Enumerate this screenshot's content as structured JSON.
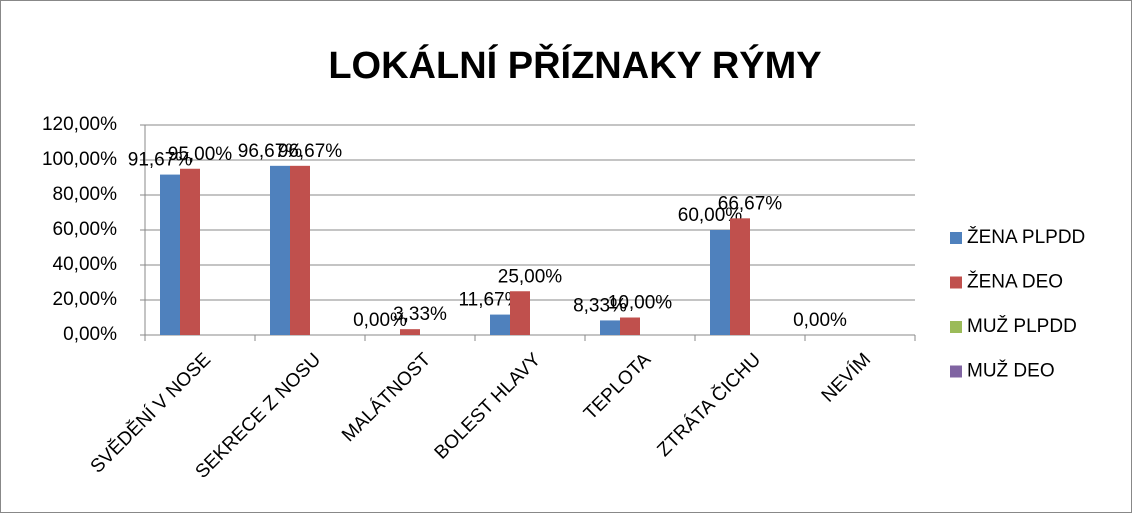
{
  "chart_data": {
    "type": "bar",
    "title": "LOKÁLNÍ PŘÍZNAKY RÝMY",
    "categories": [
      "SVĚDĚNÍ V NOSE",
      "SEKRECE Z NOSU",
      "MALÁTNOST",
      "BOLEST HLAVY",
      "TEPLOTA",
      "ZTRÁTA ČICHU",
      "NEVÍM"
    ],
    "series": [
      {
        "name": "ŽENA PLPDD",
        "color": "#4f81bd",
        "values": [
          91.67,
          96.67,
          0,
          11.67,
          8.33,
          60,
          0
        ],
        "value_labels": [
          "91,67%",
          "96,67%",
          "0,00%",
          "11,67%",
          "8,33%",
          "60,00%",
          "0,00%"
        ]
      },
      {
        "name": "ŽENA DEO",
        "color": "#c0504d",
        "values": [
          95,
          96.67,
          3.33,
          25,
          10,
          66.67,
          null
        ],
        "value_labels": [
          "95,00%",
          "96,67%",
          "3,33%",
          "25,00%",
          "10,00%",
          "66,67%",
          null
        ]
      },
      {
        "name": "MUŽ PLPDD",
        "color": "#9bbb59",
        "values": [
          null,
          null,
          null,
          null,
          null,
          null,
          null
        ]
      },
      {
        "name": "MUŽ DEO",
        "color": "#8064a2",
        "values": [
          null,
          null,
          null,
          null,
          null,
          null,
          null
        ]
      }
    ],
    "ylim": [
      0,
      120
    ],
    "yticks": [
      {
        "value": 0,
        "label": "0,00%"
      },
      {
        "value": 20,
        "label": "20,00%"
      },
      {
        "value": 40,
        "label": "40,00%"
      },
      {
        "value": 60,
        "label": "60,00%"
      },
      {
        "value": 80,
        "label": "80,00%"
      },
      {
        "value": 100,
        "label": "100,00%"
      },
      {
        "value": 120,
        "label": "120,00%"
      }
    ],
    "grid": true,
    "legend": "right"
  }
}
